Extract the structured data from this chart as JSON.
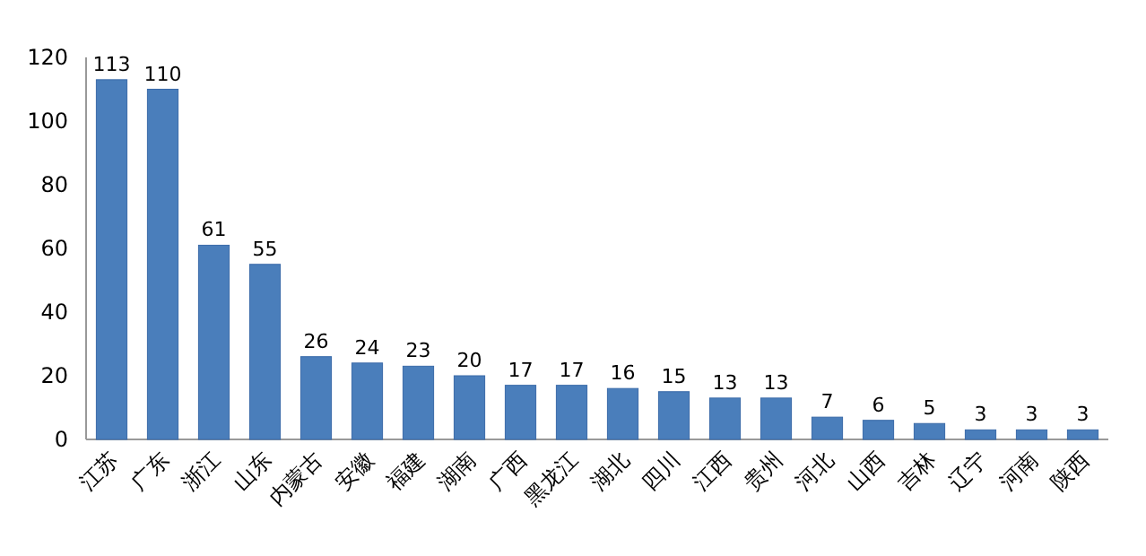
{
  "chart_data": {
    "type": "bar",
    "categories": [
      "江苏",
      "广东",
      "浙江",
      "山东",
      "内蒙古",
      "安徽",
      "福建",
      "湖南",
      "广西",
      "黑龙江",
      "湖北",
      "四川",
      "江西",
      "贵州",
      "河北",
      "山西",
      "吉林",
      "辽宁",
      "河南",
      "陕西"
    ],
    "values": [
      113,
      110,
      61,
      55,
      26,
      24,
      23,
      20,
      17,
      17,
      16,
      15,
      13,
      13,
      7,
      6,
      5,
      3,
      3,
      3
    ],
    "color": "#4a7ebb",
    "ylim": [
      0,
      120
    ],
    "yticks": [
      0,
      20,
      40,
      60,
      80,
      100,
      120
    ],
    "grid": false,
    "data_labels": true
  }
}
